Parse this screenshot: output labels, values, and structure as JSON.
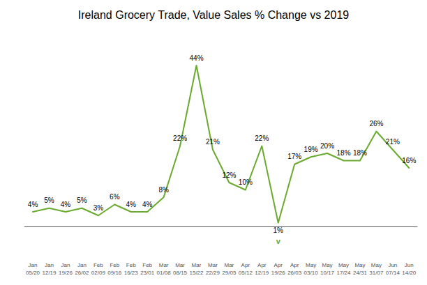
{
  "chart_data": {
    "type": "line",
    "title": "Ireland Grocery Trade, Value Sales % Change vs 2019",
    "categories": [
      "Jan\n05/20",
      "Jan\n12/19",
      "Jan\n19/26",
      "Jan\n26/02",
      "Feb\n02/09",
      "Feb\n09/16",
      "Feb\n16/23",
      "Feb\n23/01",
      "Mar\n01/08",
      "Mar\n08/15",
      "Mar\n15/22",
      "Mar\n22/29",
      "Mar\n29/05",
      "Apr\n05/12",
      "Apr\n12/19",
      "Apr\n19/26",
      "Apr\n26/03",
      "May\n03/10",
      "May\n10/17",
      "May\n17/24",
      "May\n24/31",
      "May\n31/07",
      "Jun\n07/14",
      "Jun\n14/20"
    ],
    "values": [
      4,
      5,
      4,
      5,
      3,
      6,
      4,
      4,
      8,
      22,
      44,
      21,
      12,
      10,
      22,
      1,
      17,
      19,
      20,
      18,
      18,
      26,
      21,
      16
    ],
    "value_labels": [
      "4%",
      "5%",
      "4%",
      "5%",
      "3%",
      "6%",
      "4%",
      "4%",
      "8%",
      "22%",
      "44%",
      "21%",
      "12%",
      "10%",
      "22%",
      "1%",
      "17%",
      "19%",
      "20%",
      "18%",
      "18%",
      "26%",
      "21%",
      "16%"
    ],
    "data_labels": true,
    "color": "#6aaa2e",
    "ylim": [
      -8,
      52
    ],
    "grid": false,
    "tick_labels": "x",
    "annotations": [
      {
        "text": "v",
        "x": "Apr\n19/26",
        "y": 1
      }
    ]
  }
}
